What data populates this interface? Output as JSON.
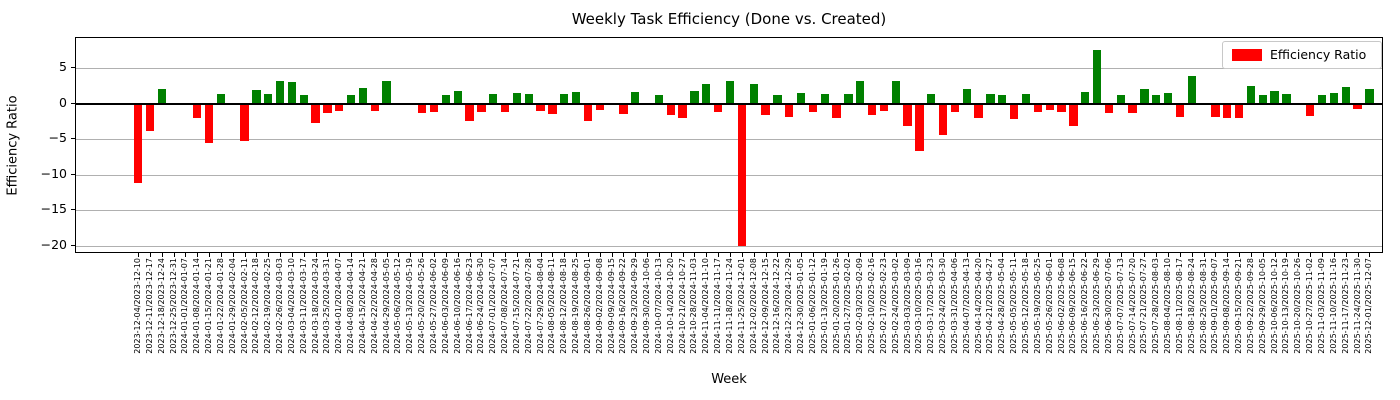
{
  "title": "Weekly Task Efficiency (Done vs. Created)",
  "legend": {
    "label": "Efficiency Ratio",
    "swatch_color": "#ff0000"
  },
  "chart_data": {
    "type": "bar",
    "title": "Weekly Task Efficiency (Done vs. Created)",
    "xlabel": "Week",
    "ylabel": "Efficiency Ratio",
    "legend_position": "upper right",
    "legend_entries": [
      "Efficiency Ratio"
    ],
    "grid": true,
    "ylim": [
      -21.3,
      9.2
    ],
    "yticks": [
      5,
      0,
      -5,
      -10,
      -15,
      -20
    ],
    "positive_color": "#008000",
    "negative_color": "#ff0000",
    "categories": [
      "2023-12-04/2023-12-10",
      "2023-12-11/2023-12-17",
      "2023-12-18/2023-12-24",
      "2023-12-25/2023-12-31",
      "2024-01-01/2024-01-07",
      "2024-01-08/2024-01-14",
      "2024-01-15/2024-01-21",
      "2024-01-22/2024-01-28",
      "2024-01-29/2024-02-04",
      "2024-02-05/2024-02-11",
      "2024-02-12/2024-02-18",
      "2024-02-19/2024-02-25",
      "2024-02-26/2024-03-03",
      "2024-03-04/2024-03-10",
      "2024-03-11/2024-03-17",
      "2024-03-18/2024-03-24",
      "2024-03-25/2024-03-31",
      "2024-04-01/2024-04-07",
      "2024-04-08/2024-04-14",
      "2024-04-15/2024-04-21",
      "2024-04-22/2024-04-28",
      "2024-04-29/2024-05-05",
      "2024-05-06/2024-05-12",
      "2024-05-13/2024-05-19",
      "2024-05-20/2024-05-26",
      "2024-05-27/2024-06-02",
      "2024-06-03/2024-06-09",
      "2024-06-10/2024-06-16",
      "2024-06-17/2024-06-23",
      "2024-06-24/2024-06-30",
      "2024-07-01/2024-07-07",
      "2024-07-08/2024-07-14",
      "2024-07-15/2024-07-21",
      "2024-07-22/2024-07-28",
      "2024-07-29/2024-08-04",
      "2024-08-05/2024-08-11",
      "2024-08-12/2024-08-18",
      "2024-08-19/2024-08-25",
      "2024-08-26/2024-09-01",
      "2024-09-02/2024-09-08",
      "2024-09-09/2024-09-15",
      "2024-09-16/2024-09-22",
      "2024-09-23/2024-09-29",
      "2024-09-30/2024-10-06",
      "2024-10-07/2024-10-13",
      "2024-10-14/2024-10-20",
      "2024-10-21/2024-10-27",
      "2024-10-28/2024-11-03",
      "2024-11-04/2024-11-10",
      "2024-11-11/2024-11-17",
      "2024-11-18/2024-11-24",
      "2024-11-25/2024-12-01",
      "2024-12-02/2024-12-08",
      "2024-12-09/2024-12-15",
      "2024-12-16/2024-12-22",
      "2024-12-23/2024-12-29",
      "2024-12-30/2025-01-05",
      "2025-01-06/2025-01-12",
      "2025-01-13/2025-01-19",
      "2025-01-20/2025-01-26",
      "2025-01-27/2025-02-02",
      "2025-02-03/2025-02-09",
      "2025-02-10/2025-02-16",
      "2025-02-17/2025-02-23",
      "2025-02-24/2025-03-02",
      "2025-03-03/2025-03-09",
      "2025-03-10/2025-03-16",
      "2025-03-17/2025-03-23",
      "2025-03-24/2025-03-30",
      "2025-03-31/2025-04-06",
      "2025-04-07/2025-04-13",
      "2025-04-14/2025-04-20",
      "2025-04-21/2025-04-27",
      "2025-04-28/2025-05-04",
      "2025-05-05/2025-05-11",
      "2025-05-12/2025-05-18",
      "2025-05-19/2025-05-25",
      "2025-05-26/2025-06-01",
      "2025-06-02/2025-06-08",
      "2025-06-09/2025-06-15",
      "2025-06-16/2025-06-22",
      "2025-06-23/2025-06-29",
      "2025-06-30/2025-07-06",
      "2025-07-07/2025-07-13",
      "2025-07-14/2025-07-20",
      "2025-07-21/2025-07-27",
      "2025-07-28/2025-08-03",
      "2025-08-04/2025-08-10",
      "2025-08-11/2025-08-17",
      "2025-08-18/2025-08-24",
      "2025-08-25/2025-08-31",
      "2025-09-01/2025-09-07",
      "2025-09-08/2025-09-14",
      "2025-09-15/2025-09-21",
      "2025-09-22/2025-09-28",
      "2025-09-29/2025-10-05",
      "2025-10-06/2025-10-12",
      "2025-10-13/2025-10-19",
      "2025-10-20/2025-10-26",
      "2025-10-27/2025-11-02",
      "2025-11-03/2025-11-09",
      "2025-11-10/2025-11-16",
      "2025-11-17/2025-11-23",
      "2025-11-24/2025-11-30",
      "2025-12-01/2025-12-07"
    ],
    "values": [
      -11.2,
      -3.9,
      2.1,
      0,
      0,
      -2.0,
      -5.6,
      1.3,
      0,
      -5.3,
      1.9,
      1.4,
      3.1,
      3.0,
      1.2,
      -2.7,
      -1.3,
      -1.1,
      1.15,
      2.2,
      -1.1,
      3.2,
      0,
      0,
      -1.4,
      -1.2,
      1.2,
      1.7,
      -2.5,
      -1.2,
      1.3,
      -1.2,
      1.5,
      1.4,
      -1.1,
      -1.5,
      1.4,
      1.6,
      -2.4,
      -0.9,
      0,
      -1.5,
      1.6,
      0,
      1.2,
      -1.6,
      -2.0,
      1.8,
      2.7,
      -1.25,
      3.2,
      -20.0,
      2.8,
      -1.6,
      1.2,
      -1.9,
      1.5,
      -1.25,
      1.4,
      -2.0,
      1.4,
      3.2,
      -1.6,
      -1.1,
      3.2,
      -3.1,
      -6.7,
      1.4,
      -4.5,
      -1.2,
      2.0,
      -2.0,
      1.4,
      1.2,
      -2.2,
      1.3,
      -1.15,
      -0.9,
      -1.15,
      -3.1,
      1.6,
      7.6,
      -1.4,
      1.25,
      -1.4,
      2.1,
      1.25,
      1.5,
      -1.85,
      3.9,
      0,
      -1.85,
      -2.0,
      -2.0,
      2.5,
      1.2,
      1.7,
      1.3,
      0,
      -1.7,
      1.2,
      1.5,
      2.3,
      -0.8,
      2.1
    ]
  }
}
